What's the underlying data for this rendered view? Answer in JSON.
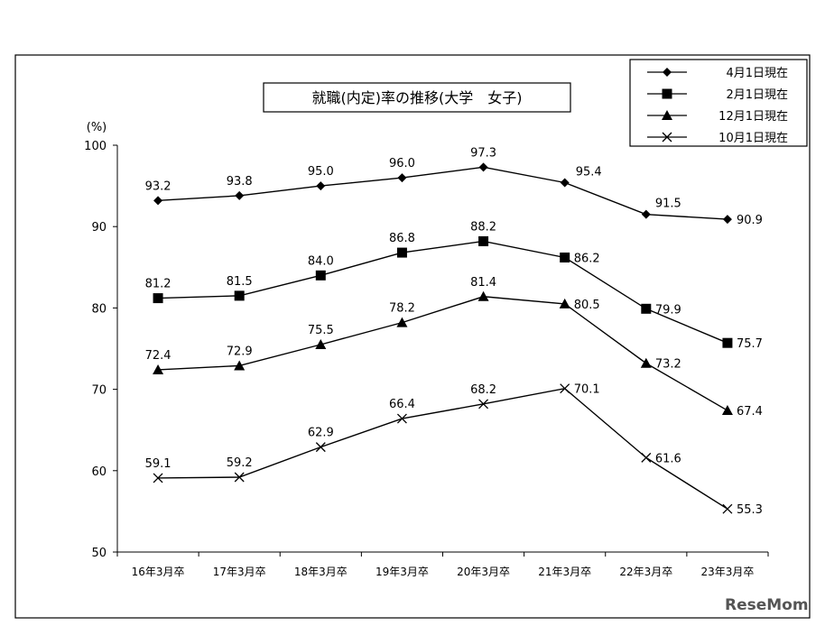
{
  "chart_data": {
    "type": "line",
    "title": "就職(内定)率の推移(大学　女子)",
    "ylabel": "(%)",
    "xlabel": "",
    "ylim": [
      50,
      100
    ],
    "yticks": [
      "50",
      "60",
      "70",
      "80",
      "90",
      "100"
    ],
    "categories": [
      "16年3月卒",
      "17年3月卒",
      "18年3月卒",
      "19年3月卒",
      "20年3月卒",
      "21年3月卒",
      "22年3月卒",
      "23年3月卒"
    ],
    "grid": false,
    "legend_position": "top-right",
    "series": [
      {
        "name": "4月1日現在",
        "marker": "diamond",
        "values": [
          93.2,
          93.8,
          95.0,
          96.0,
          97.3,
          95.4,
          91.5,
          90.9
        ],
        "labels": [
          "93.2",
          "93.8",
          "95.0",
          "96.0",
          "97.3",
          "95.4",
          "91.5",
          "90.9"
        ]
      },
      {
        "name": "2月1日現在",
        "marker": "square",
        "values": [
          81.2,
          81.5,
          84.0,
          86.8,
          88.2,
          86.2,
          79.9,
          75.7
        ],
        "labels": [
          "81.2",
          "81.5",
          "84.0",
          "86.8",
          "88.2",
          "86.2",
          "79.9",
          "75.7"
        ]
      },
      {
        "name": "12月1日現在",
        "marker": "triangle",
        "values": [
          72.4,
          72.9,
          75.5,
          78.2,
          81.4,
          80.5,
          73.2,
          67.4
        ],
        "labels": [
          "72.4",
          "72.9",
          "75.5",
          "78.2",
          "81.4",
          "80.5",
          "73.2",
          "67.4"
        ]
      },
      {
        "name": "10月1日現在",
        "marker": "x",
        "values": [
          59.1,
          59.2,
          62.9,
          66.4,
          68.2,
          70.1,
          61.6,
          55.3
        ],
        "labels": [
          "59.1",
          "59.2",
          "62.9",
          "66.4",
          "68.2",
          "70.1",
          "61.6",
          "55.3"
        ]
      }
    ]
  },
  "watermark": "ReseMom"
}
